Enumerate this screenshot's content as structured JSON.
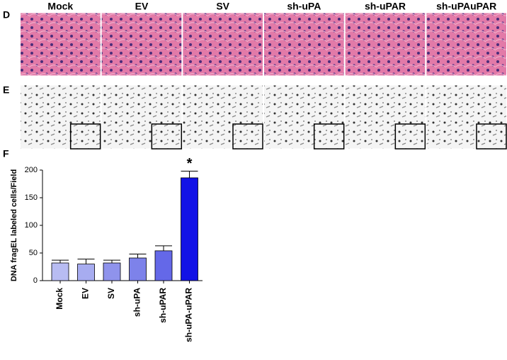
{
  "panels": {
    "labels": [
      "D",
      "E",
      "F"
    ],
    "columns": [
      "Mock",
      "EV",
      "SV",
      "sh-uPA",
      "sh-uPAR",
      "sh-uPAuPAR"
    ]
  },
  "chart_data": {
    "type": "bar",
    "y_label": "DNA fragEL labeled cells/Field",
    "categories": [
      "Mock",
      "EV",
      "SV",
      "sh-uPA",
      "sh-uPAR",
      "sh-uPA-uPAR"
    ],
    "values": [
      32,
      30,
      32,
      41,
      54,
      186
    ],
    "errors": [
      5,
      9,
      5,
      7,
      9,
      12
    ],
    "colors": [
      "#b8bcf2",
      "#a7acf0",
      "#8f93ec",
      "#7d82ea",
      "#6468e8",
      "#1212e6"
    ],
    "annotation": "*",
    "ylim": [
      0,
      200
    ],
    "yticks": [
      0,
      50,
      100,
      150,
      200
    ]
  }
}
